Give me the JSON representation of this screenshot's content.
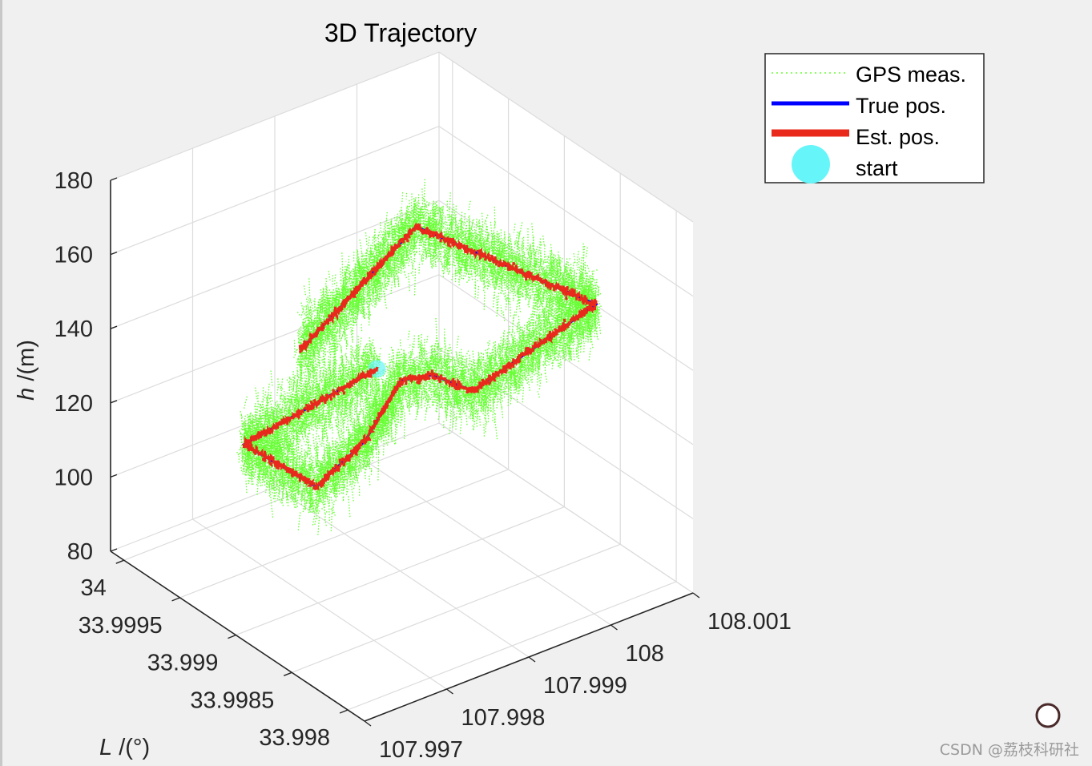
{
  "chart_data": {
    "type": "line3d",
    "title": "3D Trajectory",
    "xlabel": "L /(°)",
    "xlabel_var": "L",
    "xlabel_unit": " /(°)",
    "ylabel": "",
    "zlabel": "h /(m)",
    "zlabel_var": "h",
    "zlabel_unit": " /(m)",
    "lat_range": [
      33.99785,
      34.00012
    ],
    "lon_range": [
      107.997,
      108.001
    ],
    "h_range": [
      80,
      180
    ],
    "lat_ticks": [
      "34",
      "33.9995",
      "33.999",
      "33.9985",
      "33.998"
    ],
    "lat_tick_values": [
      34.0,
      33.9995,
      33.999,
      33.9985,
      33.998
    ],
    "lon_ticks": [
      "107.997",
      "107.998",
      "107.999",
      "108",
      "108.001"
    ],
    "lon_tick_values": [
      107.997,
      107.998,
      107.999,
      108.0,
      108.001
    ],
    "h_ticks": [
      "80",
      "100",
      "120",
      "140",
      "160",
      "180"
    ],
    "h_tick_values": [
      80,
      100,
      120,
      140,
      160,
      180
    ],
    "grid": true,
    "legend_position": "top-right",
    "series": [
      {
        "name": "GPS meas.",
        "color": "#66ff33",
        "style": "dotted",
        "noise_std": {
          "lat": 2e-05,
          "lon": 3e-05,
          "h": 4.5
        }
      },
      {
        "name": "True pos.",
        "color": "#0000ff",
        "style": "solid"
      },
      {
        "name": "Est. pos.",
        "color": "#e8291c",
        "style": "solid"
      },
      {
        "name": "start",
        "color": "#66f5f9",
        "style": "marker"
      }
    ],
    "trajectory": [
      [
        33.99953,
        107.99944,
        120
      ],
      [
        33.9998,
        107.99819,
        105
      ],
      [
        33.99936,
        107.99847,
        100
      ],
      [
        33.99943,
        107.99916,
        105
      ],
      [
        33.99951,
        107.9997,
        115
      ],
      [
        33.99945,
        108.00001,
        115
      ],
      [
        33.99934,
        108.00035,
        110
      ],
      [
        33.99857,
        108.0008,
        145
      ],
      [
        33.99935,
        107.99967,
        160
      ],
      [
        33.99931,
        107.9982,
        140
      ]
    ]
  },
  "watermark": "CSDN @荔枝科研社"
}
